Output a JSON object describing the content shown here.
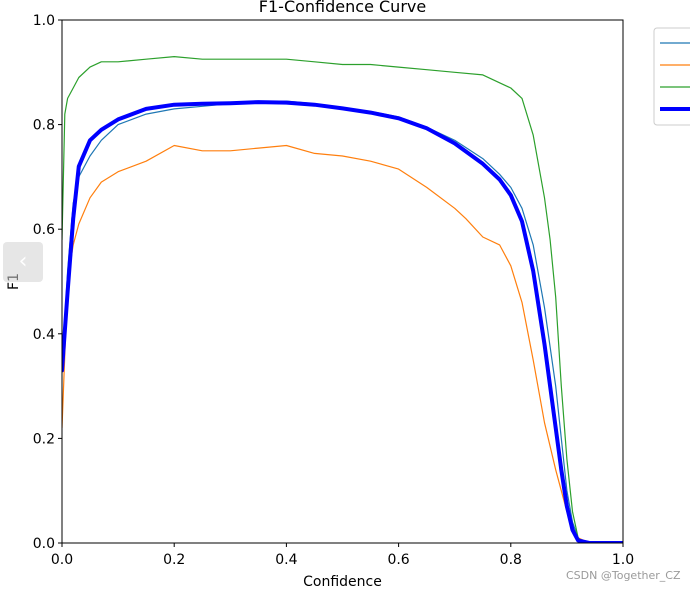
{
  "chart_data": {
    "type": "line",
    "title": "F1-Confidence Curve",
    "xlabel": "Confidence",
    "ylabel": "F1",
    "xlim": [
      0,
      1
    ],
    "ylim": [
      0,
      1
    ],
    "x_ticks": [
      "0.0",
      "0.2",
      "0.4",
      "0.6",
      "0.8",
      "1.0"
    ],
    "y_ticks": [
      "0.0",
      "0.2",
      "0.4",
      "0.6",
      "0.8",
      "1.0"
    ],
    "grid": false,
    "legend_position": "top-right",
    "series": [
      {
        "color": "#1f77b4",
        "width": 1.2,
        "points": [
          [
            0.0,
            0.33
          ],
          [
            0.01,
            0.52
          ],
          [
            0.02,
            0.65
          ],
          [
            0.03,
            0.7
          ],
          [
            0.05,
            0.74
          ],
          [
            0.07,
            0.77
          ],
          [
            0.1,
            0.8
          ],
          [
            0.15,
            0.82
          ],
          [
            0.2,
            0.83
          ],
          [
            0.25,
            0.835
          ],
          [
            0.3,
            0.84
          ],
          [
            0.35,
            0.845
          ],
          [
            0.4,
            0.845
          ],
          [
            0.45,
            0.84
          ],
          [
            0.5,
            0.83
          ],
          [
            0.55,
            0.825
          ],
          [
            0.6,
            0.815
          ],
          [
            0.65,
            0.795
          ],
          [
            0.7,
            0.77
          ],
          [
            0.75,
            0.735
          ],
          [
            0.78,
            0.705
          ],
          [
            0.8,
            0.68
          ],
          [
            0.82,
            0.64
          ],
          [
            0.84,
            0.57
          ],
          [
            0.86,
            0.45
          ],
          [
            0.88,
            0.3
          ],
          [
            0.89,
            0.2
          ],
          [
            0.9,
            0.1
          ],
          [
            0.91,
            0.04
          ],
          [
            0.92,
            0.01
          ],
          [
            0.93,
            0.0
          ],
          [
            1.0,
            0.0
          ]
        ]
      },
      {
        "color": "#ff7f0e",
        "width": 1.2,
        "points": [
          [
            0.0,
            0.22
          ],
          [
            0.01,
            0.5
          ],
          [
            0.02,
            0.57
          ],
          [
            0.03,
            0.61
          ],
          [
            0.05,
            0.66
          ],
          [
            0.07,
            0.69
          ],
          [
            0.1,
            0.71
          ],
          [
            0.15,
            0.73
          ],
          [
            0.2,
            0.76
          ],
          [
            0.25,
            0.75
          ],
          [
            0.3,
            0.75
          ],
          [
            0.35,
            0.755
          ],
          [
            0.4,
            0.76
          ],
          [
            0.45,
            0.745
          ],
          [
            0.5,
            0.74
          ],
          [
            0.55,
            0.73
          ],
          [
            0.6,
            0.715
          ],
          [
            0.65,
            0.68
          ],
          [
            0.7,
            0.64
          ],
          [
            0.72,
            0.62
          ],
          [
            0.75,
            0.585
          ],
          [
            0.78,
            0.57
          ],
          [
            0.8,
            0.53
          ],
          [
            0.82,
            0.46
          ],
          [
            0.84,
            0.35
          ],
          [
            0.86,
            0.23
          ],
          [
            0.88,
            0.14
          ],
          [
            0.9,
            0.06
          ],
          [
            0.91,
            0.03
          ],
          [
            0.92,
            0.01
          ],
          [
            0.94,
            0.0
          ],
          [
            1.0,
            0.0
          ]
        ]
      },
      {
        "color": "#2ca02c",
        "width": 1.2,
        "points": [
          [
            0.0,
            0.58
          ],
          [
            0.005,
            0.82
          ],
          [
            0.01,
            0.85
          ],
          [
            0.02,
            0.87
          ],
          [
            0.03,
            0.89
          ],
          [
            0.05,
            0.91
          ],
          [
            0.07,
            0.92
          ],
          [
            0.1,
            0.92
          ],
          [
            0.15,
            0.925
          ],
          [
            0.2,
            0.93
          ],
          [
            0.25,
            0.925
          ],
          [
            0.3,
            0.925
          ],
          [
            0.35,
            0.925
          ],
          [
            0.4,
            0.925
          ],
          [
            0.45,
            0.92
          ],
          [
            0.5,
            0.915
          ],
          [
            0.55,
            0.915
          ],
          [
            0.6,
            0.91
          ],
          [
            0.65,
            0.905
          ],
          [
            0.7,
            0.9
          ],
          [
            0.75,
            0.895
          ],
          [
            0.78,
            0.88
          ],
          [
            0.8,
            0.87
          ],
          [
            0.82,
            0.85
          ],
          [
            0.84,
            0.78
          ],
          [
            0.86,
            0.66
          ],
          [
            0.87,
            0.58
          ],
          [
            0.88,
            0.47
          ],
          [
            0.89,
            0.3
          ],
          [
            0.9,
            0.16
          ],
          [
            0.91,
            0.06
          ],
          [
            0.92,
            0.01
          ],
          [
            0.93,
            0.0
          ],
          [
            1.0,
            0.0
          ]
        ]
      },
      {
        "color": "#0000ff",
        "width": 4,
        "points": [
          [
            0.0,
            0.33
          ],
          [
            0.01,
            0.48
          ],
          [
            0.02,
            0.62
          ],
          [
            0.03,
            0.72
          ],
          [
            0.05,
            0.77
          ],
          [
            0.07,
            0.79
          ],
          [
            0.1,
            0.81
          ],
          [
            0.15,
            0.83
          ],
          [
            0.2,
            0.838
          ],
          [
            0.25,
            0.84
          ],
          [
            0.3,
            0.841
          ],
          [
            0.35,
            0.843
          ],
          [
            0.4,
            0.842
          ],
          [
            0.45,
            0.838
          ],
          [
            0.5,
            0.831
          ],
          [
            0.55,
            0.823
          ],
          [
            0.6,
            0.812
          ],
          [
            0.65,
            0.793
          ],
          [
            0.7,
            0.764
          ],
          [
            0.75,
            0.725
          ],
          [
            0.78,
            0.695
          ],
          [
            0.8,
            0.665
          ],
          [
            0.82,
            0.615
          ],
          [
            0.84,
            0.52
          ],
          [
            0.86,
            0.38
          ],
          [
            0.88,
            0.22
          ],
          [
            0.89,
            0.14
          ],
          [
            0.9,
            0.07
          ],
          [
            0.91,
            0.025
          ],
          [
            0.92,
            0.005
          ],
          [
            0.94,
            0.0
          ],
          [
            1.0,
            0.0
          ]
        ]
      }
    ]
  },
  "ui": {
    "prev_button_glyph": "‹",
    "watermark": "CSDN @Together_CZ"
  }
}
